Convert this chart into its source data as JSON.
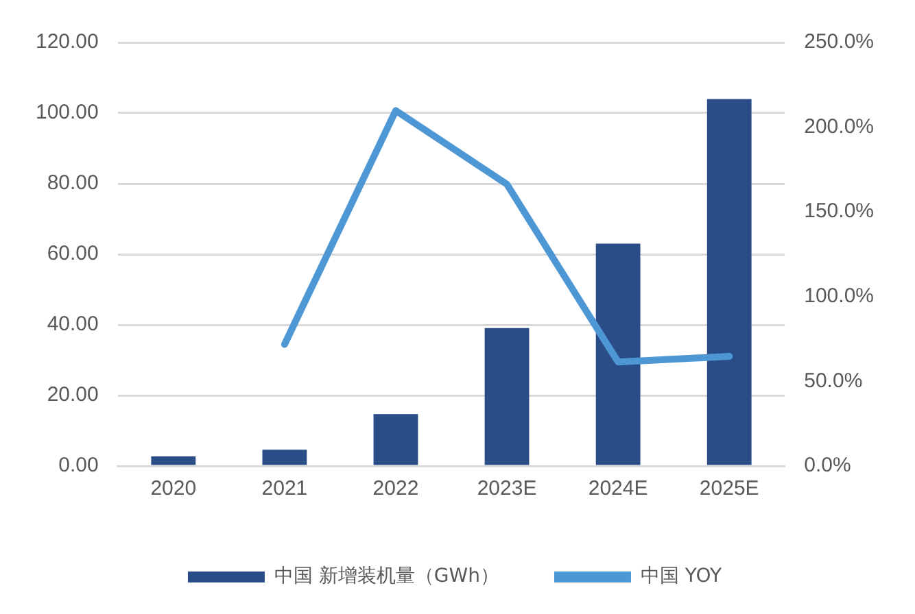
{
  "chart_data": {
    "type": "bar",
    "categories": [
      "2020",
      "2021",
      "2022",
      "2023E",
      "2024E",
      "2025E"
    ],
    "series": [
      {
        "name": "中国 新增装机量（GWh）",
        "color": "#2a4d87",
        "values": [
          2.7,
          4.6,
          14.7,
          39.1,
          63.0,
          104.0
        ]
      },
      {
        "name": "中国 YOY",
        "type": "line",
        "axis": "y2",
        "color": "#4e97d5",
        "values": [
          null,
          71.8,
          209.8,
          166.3,
          61.4,
          64.7
        ]
      }
    ],
    "ylim": [
      0,
      120
    ],
    "yticks": [
      {
        "value": 0,
        "label": "0.00"
      },
      {
        "value": 20,
        "label": "20.00"
      },
      {
        "value": 40,
        "label": "40.00"
      },
      {
        "value": 60,
        "label": "60.00"
      },
      {
        "value": 80,
        "label": "80.00"
      },
      {
        "value": 100,
        "label": "100.00"
      },
      {
        "value": 120,
        "label": "120.00"
      }
    ],
    "y2lim": [
      0,
      250
    ],
    "y2ticks": [
      {
        "value": 0,
        "label": "0.0%"
      },
      {
        "value": 50,
        "label": "50.0%"
      },
      {
        "value": 100,
        "label": "100.0%"
      },
      {
        "value": 150,
        "label": "150.0%"
      },
      {
        "value": 200,
        "label": "200.0%"
      },
      {
        "value": 250,
        "label": "250.0%"
      }
    ],
    "grid": "y",
    "legend": "bottom",
    "marker": "none",
    "line_style": "solid"
  }
}
